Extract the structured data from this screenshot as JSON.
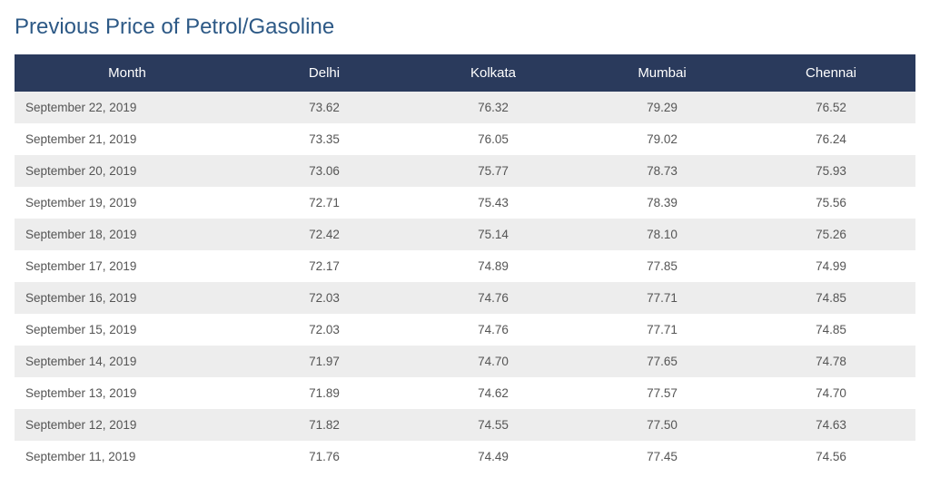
{
  "title": "Previous Price of Petrol/Gasoline",
  "table": {
    "type": "table",
    "columns": [
      "Month",
      "Delhi",
      "Kolkata",
      "Mumbai",
      "Chennai"
    ],
    "column_alignments": [
      "left",
      "center",
      "center",
      "center",
      "center"
    ],
    "header_bg_color": "#2a3a5c",
    "header_text_color": "#ffffff",
    "row_odd_bg": "#ededed",
    "row_even_bg": "#ffffff",
    "cell_text_color": "#555555",
    "title_color": "#2d5986",
    "title_fontsize": 24,
    "header_fontsize": 15,
    "cell_fontsize": 13.5,
    "rows": [
      [
        "September 22, 2019",
        "73.62",
        "76.32",
        "79.29",
        "76.52"
      ],
      [
        "September 21, 2019",
        "73.35",
        "76.05",
        "79.02",
        "76.24"
      ],
      [
        "September 20, 2019",
        "73.06",
        "75.77",
        "78.73",
        "75.93"
      ],
      [
        "September 19, 2019",
        "72.71",
        "75.43",
        "78.39",
        "75.56"
      ],
      [
        "September 18, 2019",
        "72.42",
        "75.14",
        "78.10",
        "75.26"
      ],
      [
        "September 17, 2019",
        "72.17",
        "74.89",
        "77.85",
        "74.99"
      ],
      [
        "September 16, 2019",
        "72.03",
        "74.76",
        "77.71",
        "74.85"
      ],
      [
        "September 15, 2019",
        "72.03",
        "74.76",
        "77.71",
        "74.85"
      ],
      [
        "September 14, 2019",
        "71.97",
        "74.70",
        "77.65",
        "74.78"
      ],
      [
        "September 13, 2019",
        "71.89",
        "74.62",
        "77.57",
        "74.70"
      ],
      [
        "September 12, 2019",
        "71.82",
        "74.55",
        "77.50",
        "74.63"
      ],
      [
        "September 11, 2019",
        "71.76",
        "74.49",
        "77.45",
        "74.56"
      ]
    ]
  }
}
